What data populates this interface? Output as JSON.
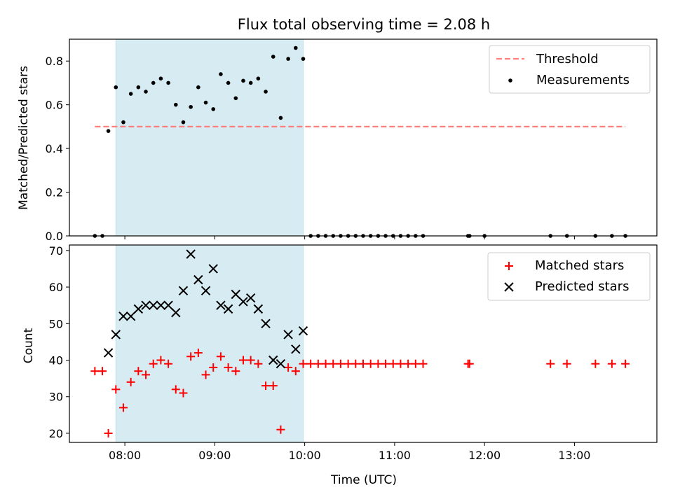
{
  "title": "Flux total observing time = 2.08 h",
  "chart_data": [
    {
      "type": "scatter",
      "ylabel": "Matched/Predicted stars",
      "xlabel": "",
      "ylim": [
        0,
        0.9
      ],
      "yticks": [
        0.0,
        0.2,
        0.4,
        0.6,
        0.8
      ],
      "ytick_labels": [
        "0.0",
        "0.2",
        "0.4",
        "0.6",
        "0.8"
      ],
      "shaded_span": [
        "07:54",
        "09:59"
      ],
      "shade_color": "#add8e6",
      "legend_position": "upper right",
      "threshold": {
        "name": "Threshold",
        "y": 0.5,
        "x_range": [
          "07:40",
          "13:34"
        ],
        "color": "#ff7f7f",
        "style": "dashed"
      },
      "series": [
        {
          "name": "Measurements",
          "marker": "dot",
          "color": "#000000",
          "x": [
            "07:40",
            "07:45",
            "07:49",
            "07:54",
            "07:59",
            "08:04",
            "08:09",
            "08:14",
            "08:19",
            "08:24",
            "08:29",
            "08:34",
            "08:39",
            "08:44",
            "08:49",
            "08:54",
            "08:59",
            "09:04",
            "09:09",
            "09:14",
            "09:19",
            "09:24",
            "09:29",
            "09:34",
            "09:39",
            "09:44",
            "09:49",
            "09:54",
            "09:59",
            "10:04",
            "10:09",
            "10:14",
            "10:19",
            "10:24",
            "10:29",
            "10:34",
            "10:39",
            "10:44",
            "10:49",
            "10:54",
            "10:59",
            "11:04",
            "11:09",
            "11:14",
            "11:19",
            "11:49",
            "11:50",
            "12:00",
            "12:44",
            "12:55",
            "13:14",
            "13:25",
            "13:34"
          ],
          "y": [
            0,
            0,
            0.48,
            0.68,
            0.52,
            0.65,
            0.68,
            0.66,
            0.7,
            0.72,
            0.7,
            0.6,
            0.52,
            0.59,
            0.68,
            0.61,
            0.58,
            0.74,
            0.7,
            0.63,
            0.71,
            0.7,
            0.72,
            0.66,
            0.82,
            0.54,
            0.81,
            0.86,
            0.81,
            0,
            0,
            0,
            0,
            0,
            0,
            0,
            0,
            0,
            0,
            0,
            0,
            0,
            0,
            0,
            0,
            0,
            0,
            0,
            0,
            0,
            0,
            0,
            0
          ]
        }
      ]
    },
    {
      "type": "scatter",
      "ylabel": "Count",
      "xlabel": "Time (UTC)",
      "ylim": [
        17.5,
        71.5
      ],
      "yticks": [
        20,
        30,
        40,
        50,
        60,
        70
      ],
      "ytick_labels": [
        "20",
        "30",
        "40",
        "50",
        "60",
        "70"
      ],
      "xticks": [
        "08:00",
        "09:00",
        "10:00",
        "11:00",
        "12:00",
        "13:00"
      ],
      "xtick_labels": [
        "08:00",
        "09:00",
        "10:00",
        "11:00",
        "12:00",
        "13:00"
      ],
      "xlim": [
        "07:23",
        "13:55"
      ],
      "shaded_span": [
        "07:54",
        "09:59"
      ],
      "shade_color": "#add8e6",
      "legend_position": "upper right",
      "series": [
        {
          "name": "Matched stars",
          "marker": "plus",
          "color": "#ff0000",
          "x": [
            "07:40",
            "07:45",
            "07:49",
            "07:54",
            "07:59",
            "08:04",
            "08:09",
            "08:14",
            "08:19",
            "08:24",
            "08:29",
            "08:34",
            "08:39",
            "08:44",
            "08:49",
            "08:54",
            "08:59",
            "09:04",
            "09:09",
            "09:14",
            "09:19",
            "09:24",
            "09:29",
            "09:34",
            "09:39",
            "09:44",
            "09:49",
            "09:54",
            "09:59",
            "10:04",
            "10:09",
            "10:14",
            "10:19",
            "10:24",
            "10:29",
            "10:34",
            "10:39",
            "10:44",
            "10:49",
            "10:54",
            "10:59",
            "11:04",
            "11:09",
            "11:14",
            "11:19",
            "11:49",
            "11:50",
            "12:44",
            "12:55",
            "13:14",
            "13:25",
            "13:34"
          ],
          "y": [
            37,
            37,
            20,
            32,
            27,
            34,
            37,
            36,
            39,
            40,
            39,
            32,
            31,
            41,
            42,
            36,
            38,
            41,
            38,
            37,
            40,
            40,
            39,
            33,
            33,
            21,
            38,
            37,
            39,
            39,
            39,
            39,
            39,
            39,
            39,
            39,
            39,
            39,
            39,
            39,
            39,
            39,
            39,
            39,
            39,
            39,
            39,
            39,
            39,
            39,
            39,
            39
          ]
        },
        {
          "name": "Predicted stars",
          "marker": "x",
          "color": "#000000",
          "x": [
            "07:49",
            "07:54",
            "07:59",
            "08:04",
            "08:09",
            "08:14",
            "08:19",
            "08:24",
            "08:29",
            "08:34",
            "08:39",
            "08:44",
            "08:49",
            "08:54",
            "08:59",
            "09:04",
            "09:09",
            "09:14",
            "09:19",
            "09:24",
            "09:29",
            "09:34",
            "09:39",
            "09:44",
            "09:49",
            "09:54",
            "09:59"
          ],
          "y": [
            42,
            47,
            52,
            52,
            54,
            55,
            55,
            55,
            55,
            53,
            59,
            69,
            62,
            59,
            65,
            55,
            54,
            58,
            56,
            57,
            54,
            50,
            40,
            39,
            47,
            43,
            48
          ]
        }
      ]
    }
  ]
}
